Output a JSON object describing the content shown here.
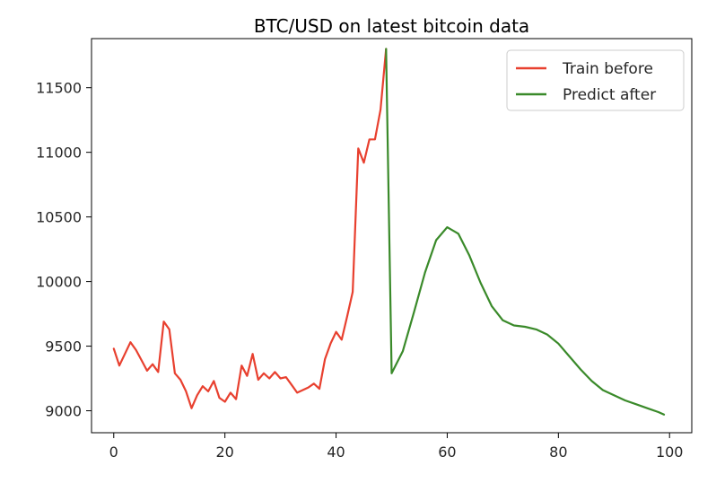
{
  "chart_data": {
    "type": "line",
    "title": "BTC/USD on latest bitcoin data",
    "xlabel": "",
    "ylabel": "",
    "xlim": [
      -4,
      104
    ],
    "ylim": [
      8830,
      11880
    ],
    "xticks": [
      0,
      20,
      40,
      60,
      80,
      100
    ],
    "yticks": [
      9000,
      9500,
      10000,
      10500,
      11000,
      11500
    ],
    "xtick_labels": [
      "0",
      "20",
      "40",
      "60",
      "80",
      "100"
    ],
    "ytick_labels": [
      "9000",
      "9500",
      "10000",
      "10500",
      "11000",
      "11500"
    ],
    "grid": false,
    "legend_position": "top-right",
    "series": [
      {
        "name": "Train before",
        "color": "#e8402f",
        "x": [
          0,
          1,
          2,
          3,
          4,
          5,
          6,
          7,
          8,
          9,
          10,
          11,
          12,
          13,
          14,
          15,
          16,
          17,
          18,
          19,
          20,
          21,
          22,
          23,
          24,
          25,
          26,
          27,
          28,
          29,
          30,
          31,
          32,
          33,
          34,
          35,
          36,
          37,
          38,
          39,
          40,
          41,
          42,
          43,
          44,
          45,
          46,
          47,
          48,
          49
        ],
        "y": [
          9480,
          9350,
          9440,
          9530,
          9470,
          9390,
          9310,
          9360,
          9300,
          9690,
          9630,
          9290,
          9240,
          9150,
          9020,
          9120,
          9190,
          9150,
          9230,
          9100,
          9070,
          9140,
          9090,
          9350,
          9270,
          9440,
          9240,
          9290,
          9250,
          9300,
          9250,
          9260,
          9200,
          9140,
          9160,
          9180,
          9210,
          9170,
          9400,
          9520,
          9610,
          9550,
          9730,
          9920,
          11030,
          10920,
          11100,
          11100,
          11330,
          11800
        ]
      },
      {
        "name": "Predict after",
        "color": "#3a8a2a",
        "x": [
          49,
          50,
          52,
          54,
          56,
          58,
          60,
          62,
          64,
          66,
          68,
          70,
          72,
          74,
          76,
          78,
          80,
          82,
          84,
          86,
          88,
          90,
          92,
          94,
          96,
          98,
          99
        ],
        "y": [
          11800,
          9290,
          9460,
          9760,
          10070,
          10320,
          10420,
          10370,
          10200,
          9990,
          9810,
          9700,
          9660,
          9650,
          9630,
          9590,
          9520,
          9420,
          9320,
          9230,
          9160,
          9120,
          9080,
          9050,
          9020,
          8990,
          8970
        ]
      }
    ]
  }
}
